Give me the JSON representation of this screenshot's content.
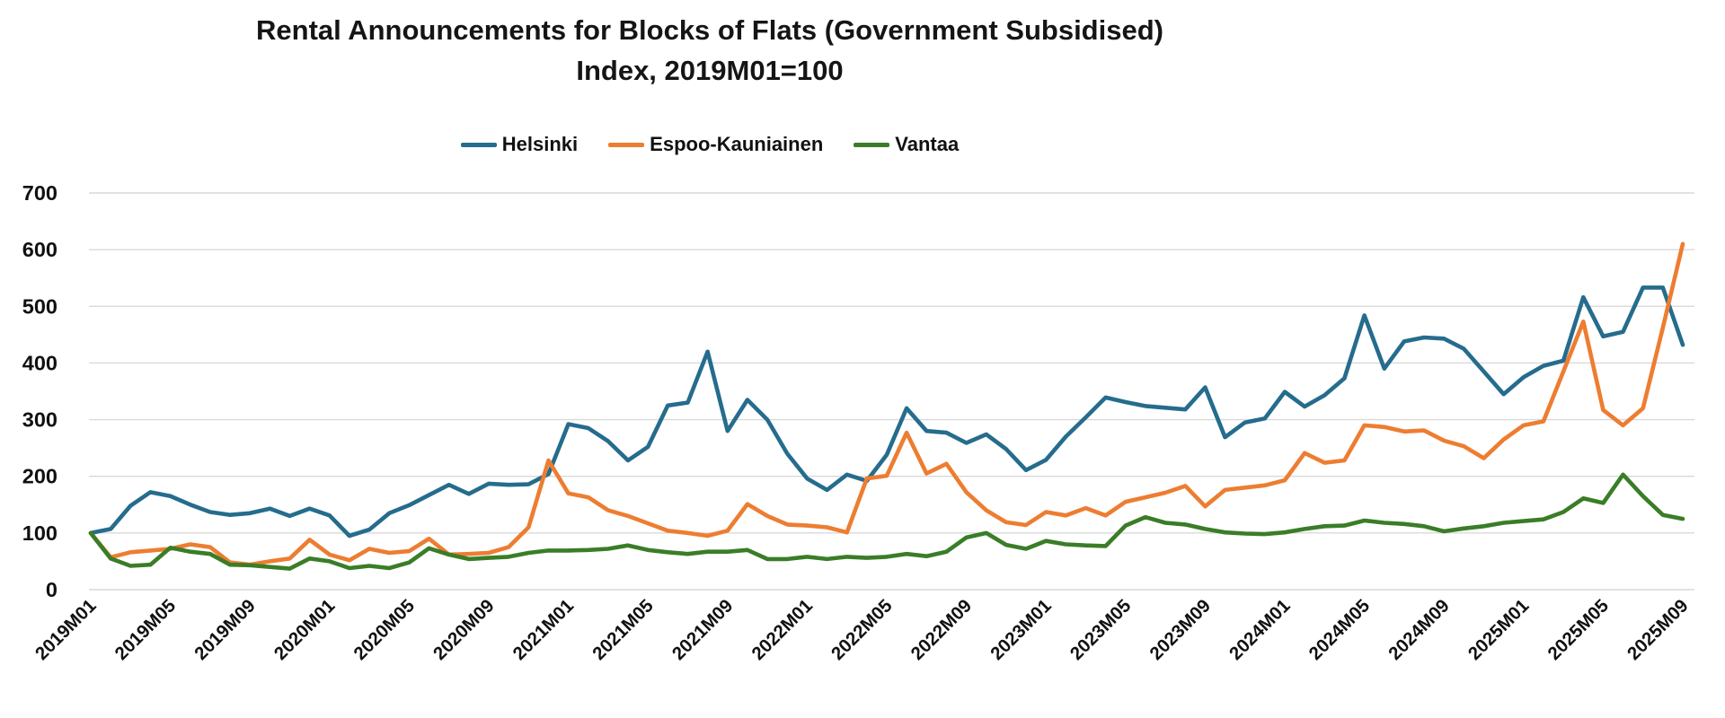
{
  "title": {
    "line1": "Rental Announcements for Blocks of Flats (Government Subsidised)",
    "line2": "Index, 2019M01=100"
  },
  "chart_data": {
    "type": "line",
    "title": "Rental Announcements for Blocks of Flats (Government Subsidised) Index, 2019M01=100",
    "xlabel": "",
    "ylabel": "",
    "ylim": [
      0,
      700
    ],
    "yticks": [
      0,
      100,
      200,
      300,
      400,
      500,
      600,
      700
    ],
    "grid": true,
    "legend_position": "top",
    "xtick_every": 4,
    "x": [
      "2019M01",
      "2019M02",
      "2019M03",
      "2019M04",
      "2019M05",
      "2019M06",
      "2019M07",
      "2019M08",
      "2019M09",
      "2019M10",
      "2019M11",
      "2019M12",
      "2020M01",
      "2020M02",
      "2020M03",
      "2020M04",
      "2020M05",
      "2020M06",
      "2020M07",
      "2020M08",
      "2020M09",
      "2020M10",
      "2020M11",
      "2020M12",
      "2021M01",
      "2021M02",
      "2021M03",
      "2021M04",
      "2021M05",
      "2021M06",
      "2021M07",
      "2021M08",
      "2021M09",
      "2021M10",
      "2021M11",
      "2021M12",
      "2022M01",
      "2022M02",
      "2022M03",
      "2022M04",
      "2022M05",
      "2022M06",
      "2022M07",
      "2022M08",
      "2022M09",
      "2022M10",
      "2022M11",
      "2022M12",
      "2023M01",
      "2023M02",
      "2023M03",
      "2023M04",
      "2023M05",
      "2023M06",
      "2023M07",
      "2023M08",
      "2023M09",
      "2023M10",
      "2023M11",
      "2023M12",
      "2024M01",
      "2024M02",
      "2024M03",
      "2024M04",
      "2024M05",
      "2024M06",
      "2024M07",
      "2024M08",
      "2024M09",
      "2024M10",
      "2024M11",
      "2024M12",
      "2025M01",
      "2025M02",
      "2025M03",
      "2025M04",
      "2025M05",
      "2025M06",
      "2025M07",
      "2025M08",
      "2025M09"
    ],
    "series": [
      {
        "name": "Helsinki",
        "color": "#256c8d",
        "values": [
          100,
          107,
          148,
          172,
          165,
          150,
          137,
          132,
          135,
          143,
          130,
          143,
          131,
          95,
          106,
          135,
          149,
          167,
          185,
          169,
          187,
          185,
          186,
          204,
          292,
          285,
          262,
          228,
          252,
          325,
          330,
          420,
          280,
          335,
          300,
          240,
          196,
          176,
          203,
          192,
          238,
          320,
          280,
          277,
          259,
          274,
          248,
          211,
          229,
          270,
          304,
          339,
          331,
          324,
          321,
          318,
          357,
          269,
          295,
          302,
          349,
          323,
          343,
          373,
          484,
          390,
          438,
          445,
          443,
          425,
          385,
          345,
          375,
          395,
          404,
          516,
          447,
          455,
          533,
          533,
          432
        ]
      },
      {
        "name": "Espoo-Kauniainen",
        "color": "#ED7D31",
        "values": [
          100,
          57,
          66,
          69,
          72,
          80,
          75,
          48,
          44,
          50,
          55,
          88,
          62,
          52,
          72,
          65,
          68,
          90,
          62,
          63,
          65,
          75,
          110,
          228,
          170,
          163,
          140,
          130,
          117,
          104,
          100,
          95,
          104,
          151,
          130,
          115,
          113,
          110,
          101,
          196,
          201,
          277,
          205,
          222,
          172,
          140,
          119,
          114,
          137,
          131,
          144,
          131,
          155,
          163,
          171,
          183,
          147,
          176,
          180,
          184,
          193,
          241,
          224,
          228,
          290,
          287,
          279,
          281,
          263,
          253,
          232,
          265,
          290,
          297,
          385,
          473,
          317,
          290,
          320,
          462,
          610
        ]
      },
      {
        "name": "Vantaa",
        "color": "#3A7D27",
        "values": [
          100,
          55,
          42,
          44,
          74,
          67,
          63,
          44,
          43,
          40,
          37,
          55,
          50,
          38,
          42,
          38,
          48,
          73,
          62,
          54,
          56,
          58,
          65,
          69,
          69,
          70,
          72,
          78,
          70,
          66,
          63,
          67,
          67,
          70,
          54,
          54,
          58,
          54,
          58,
          56,
          58,
          63,
          59,
          67,
          92,
          100,
          79,
          72,
          86,
          80,
          78,
          77,
          113,
          128,
          118,
          115,
          107,
          101,
          99,
          98,
          101,
          107,
          112,
          113,
          122,
          118,
          116,
          112,
          103,
          108,
          112,
          118,
          121,
          124,
          137,
          161,
          153,
          203,
          165,
          132,
          125
        ]
      }
    ]
  },
  "style": {
    "gridline_color": "#d9d9d9",
    "text_color": "#111111",
    "background": "#ffffff"
  }
}
